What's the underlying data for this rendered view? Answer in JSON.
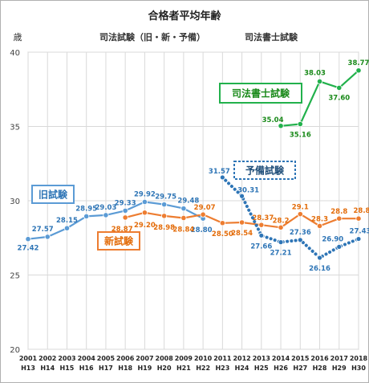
{
  "chart_data": {
    "type": "line",
    "title": "合格者平均年齢",
    "subtitle_left": "司法試験（旧・新・予備）",
    "subtitle_right": "司法書士試験",
    "unit_label": "歳",
    "ylim": [
      20,
      40
    ],
    "yticks": [
      "20",
      "25",
      "30",
      "35",
      "40"
    ],
    "grid": true,
    "categories": [
      [
        "2001",
        "H13"
      ],
      [
        "2002",
        "H14"
      ],
      [
        "2003",
        "H15"
      ],
      [
        "2004",
        "H16"
      ],
      [
        "2005",
        "H17"
      ],
      [
        "2006",
        "H18"
      ],
      [
        "2007",
        "H19"
      ],
      [
        "2008",
        "H20"
      ],
      [
        "2009",
        "H21"
      ],
      [
        "2010",
        "H22"
      ],
      [
        "2011",
        "H23"
      ],
      [
        "2012",
        "H24"
      ],
      [
        "2013",
        "H25"
      ],
      [
        "2014",
        "H26"
      ],
      [
        "2015",
        "H27"
      ],
      [
        "2016",
        "H28"
      ],
      [
        "2017",
        "H29"
      ],
      [
        "2018",
        "H30"
      ]
    ],
    "series": [
      {
        "name": "旧試験",
        "color": "#5b9bd5",
        "style": "solid",
        "values": [
          27.42,
          27.57,
          28.15,
          28.95,
          29.03,
          29.33,
          29.92,
          29.75,
          29.48,
          28.8,
          null,
          null,
          null,
          null,
          null,
          null,
          null,
          null
        ],
        "labels": [
          "27.42",
          "27.57",
          "28.15",
          "28.95",
          "29.03",
          "29.33",
          "29.92",
          "29.75",
          "29.48",
          "28.80",
          "",
          "",
          "",
          "",
          "",
          "",
          "",
          ""
        ]
      },
      {
        "name": "新試験",
        "color": "#ed7d31",
        "style": "solid",
        "values": [
          null,
          null,
          null,
          null,
          null,
          28.87,
          29.2,
          28.98,
          28.84,
          29.07,
          28.5,
          28.54,
          28.37,
          28.2,
          29.1,
          28.3,
          28.8,
          28.8
        ],
        "labels": [
          "",
          "",
          "",
          "",
          "",
          "28.87",
          "29.20",
          "28.98",
          "28.84",
          "29.07",
          "28.50",
          "28.54",
          "28.37",
          "28.2",
          "29.1",
          "28.3",
          "28.8",
          "28.8"
        ]
      },
      {
        "name": "予備試験",
        "color": "#2e75b6",
        "style": "dotted",
        "values": [
          null,
          null,
          null,
          null,
          null,
          null,
          null,
          null,
          null,
          null,
          31.57,
          30.31,
          27.66,
          27.21,
          27.36,
          26.16,
          26.9,
          27.43
        ],
        "labels": [
          "",
          "",
          "",
          "",
          "",
          "",
          "",
          "",
          "",
          "",
          "31.57",
          "30.31",
          "27.66",
          "27.21",
          "27.36",
          "26.16",
          "26.90",
          "27.43"
        ]
      },
      {
        "name": "司法書士試験",
        "color": "#22b14c",
        "style": "solid",
        "values": [
          null,
          null,
          null,
          null,
          null,
          null,
          null,
          null,
          null,
          null,
          null,
          null,
          null,
          35.04,
          35.16,
          38.03,
          37.6,
          38.77
        ],
        "labels": [
          "",
          "",
          "",
          "",
          "",
          "",
          "",
          "",
          "",
          "",
          "",
          "",
          "",
          "35.04",
          "35.16",
          "38.03",
          "37.60",
          "38.77"
        ]
      }
    ]
  }
}
